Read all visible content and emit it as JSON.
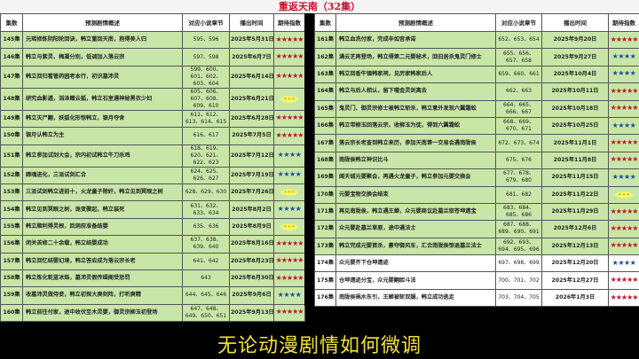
{
  "title": "重返天南（32集）",
  "headers": [
    "集数",
    "预测剧情概述",
    "对应小说章节",
    "播出时间",
    "期待指数"
  ],
  "colors": {
    "five_star": "#c41230",
    "four_star": "#1f4e9a",
    "three_star": "#c8b400",
    "row_green": "#c8e6a8",
    "title_red": "#c8102e",
    "subtitle_yellow": "#f2e23a"
  },
  "left_rows": [
    {
      "ep": "145集",
      "desc": "元瑶修炼阴阳轮回诀，韩立重回天南，抱得美人归",
      "ch": "595、596",
      "date": "2025年5月31日",
      "stars": 5
    },
    {
      "ep": "146集",
      "desc": "韩立与紫灵、梅凝分别，低调加入落云宗",
      "ch": "597、598",
      "date": "2025年6月7日",
      "stars": 5
    },
    {
      "ep": "147集",
      "desc": "韩立回归看管药园老本行，初识墓沛灵",
      "ch": "599、600、601、602、603、604",
      "date": "2025年6月14日",
      "stars": 5
    },
    {
      "ep": "148集",
      "desc": "研究血影遁，滔泽赠云狐，韩立石室遇神秘黑衣少妇",
      "ch": "605、606、607、608、609、610",
      "date": "2025年6月21日",
      "stars": 3
    },
    {
      "ep": "149集",
      "desc": "韩立灭尸翻，妖狐化形惊韩立，银月夺舍",
      "ch": "611、612、613、614、615",
      "date": "2025年6月28日",
      "stars": 5
    },
    {
      "ep": "150集",
      "desc": "银月认韩立为主",
      "ch": "616、617",
      "date": "2025年7月5日",
      "stars": 5
    },
    {
      "ep": "151集",
      "desc": "韩立参加试剑大会，宗内初试韩立牛刀杀鸡",
      "ch": "618、619、620、621、622、623",
      "date": "2025年7月12日",
      "stars": 4
    },
    {
      "ep": "152集",
      "desc": "蹄魂进化，三派试剑汇合",
      "ch": "624、625、626、627",
      "date": "2025年7月19日",
      "stars": 4
    },
    {
      "ep": "153集",
      "desc": "三派试剑韩立进前十，火龙童子除奸，韩立见到冥眼之树",
      "ch": "628、629、630",
      "date": "2025年7月26日",
      "stars": 3
    },
    {
      "ep": "154集",
      "desc": "韩立见到冥眼之树，诡变骤起，韩立装死",
      "ch": "631、632、633、634",
      "date": "2025年8月2日",
      "stars": 4
    },
    {
      "ep": "155集",
      "desc": "韩立顺利得灵根，回洞府准备结婴",
      "ch": "635、636",
      "date": "2025年8月9日",
      "stars": 3
    },
    {
      "ep": "156集",
      "desc": "闭关苦修二十余载，韩立结婴成功",
      "ch": "637、638、639、640",
      "date": "2025年8月16日",
      "stars": 5
    },
    {
      "ep": "157集",
      "desc": "韩立回忆结婴幻境，韩立答应成为落云宗长老",
      "ch": "641、642",
      "date": "2025年8月23日",
      "stars": 5
    },
    {
      "ep": "158集",
      "desc": "韩立炼化乾蓝冰焰，墓沛灵假传缉阁受惩罚",
      "ch": "643",
      "date": "2025年8月30日",
      "stars": 5
    },
    {
      "ep": "159集",
      "desc": "收墓沛灵做侍妾，韩立初探大庚剑阵，打听庚精",
      "ch": "644、645、646",
      "date": "2025年9月6日",
      "stars": 4
    },
    {
      "ep": "160集",
      "desc": "韩立前往付家，途中收伏至木灵婴，御灵宗柳玉初登场",
      "ch": "647、648、649、650、651",
      "date": "2025年9月13日",
      "stars": 5
    }
  ],
  "right_rows": [
    {
      "ep": "161集",
      "desc": "韩立血洗付家，完成辛如音承诺",
      "ch": "652、653、654",
      "date": "2025年9月20日",
      "stars": 5
    },
    {
      "ep": "162集",
      "desc": "满云芝再登场，韩立得第二元婴秘术，回旧居杀鬼灵门修士",
      "ch": "655、656、657、658",
      "date": "2025年9月27日",
      "stars": 4
    },
    {
      "ep": "163集",
      "desc": "韩立回香牛镇韩家祠，见厉家韩家后人",
      "ch": "659、660、661",
      "date": "2025年10月4日",
      "stars": 4
    },
    {
      "ep": "164集",
      "desc": "韩立与后人相认，留下噬金灵剑离去",
      "ch": "662、663",
      "date": "2025年10月11日",
      "stars": 5
    },
    {
      "ep": "165集",
      "desc": "鬼灵门、御灵宗修士被韩立斩杀，韩立意外发现六翼霜蚣",
      "ch": "664、665、666、667",
      "date": "2025年10月18日",
      "stars": 5
    },
    {
      "ep": "166集",
      "desc": "韩立带柳玉回落云宗，收柳玉为徒，得到六翼霜蚣",
      "ch": "668、669、670、671",
      "date": "2025年10月25日",
      "stars": 4
    },
    {
      "ep": "167集",
      "desc": "落云宗长老查到韩立来历，参加天南第一交易会遇南陇侯",
      "ch": "672、673、674",
      "date": "2025年11月1日",
      "stars": 5
    },
    {
      "ep": "168集",
      "desc": "南陇侯韩立神识比斗",
      "ch": "675、676",
      "date": "2025年11月8日",
      "stars": 5
    },
    {
      "ep": "169集",
      "desc": "阔天城元婴聚会，再遇火龙童子，韩立参加元婴交换会",
      "ch": "677、678、679、680",
      "date": "2025年11月15日",
      "stars": 4
    },
    {
      "ep": "170集",
      "desc": "元婴宝物交换会结束",
      "ch": "681、682",
      "date": "2025年11月22日",
      "stars": 3
    },
    {
      "ep": "171集",
      "desc": "再见南陇侯，韩立遇王蝉，众元婴商议赴墓兰取苍坤遗宝",
      "ch": "683、684、685、686",
      "date": "2025年11月29日",
      "stars": 5
    },
    {
      "ep": "172集",
      "desc": "众元婴赴墓兰草原，途中遇法士",
      "ch": "687、688、689、690、691",
      "date": "2025年12月6日",
      "stars": 5
    },
    {
      "ep": "173集",
      "desc": "韩立完成元婴首杀，豪夺御风车，汇合南陇侯惊退墓兰法士",
      "ch": "692、693、694、695、696",
      "date": "2025年12月13日",
      "stars": 5
    },
    {
      "ep": "174集",
      "desc": "众元婴齐下仓坤遗迹",
      "ch": "697、698、699",
      "date": "2025年12月20日",
      "stars": 4,
      "white": true
    },
    {
      "ep": "175集",
      "desc": "仓坤遗迹分宝，众元婴翻脸斗法",
      "ch": "700、701、702",
      "date": "2025年12月27日",
      "stars": 5,
      "white": true
    },
    {
      "ep": "176集",
      "desc": "南陇侯祸水东引，王蝉被斩双腿，韩立成功逃走",
      "ch": "703、704、705",
      "date": "2026年1月3日",
      "stars": 5,
      "white": true
    }
  ],
  "subtitle": "无论动漫剧情如何微调"
}
